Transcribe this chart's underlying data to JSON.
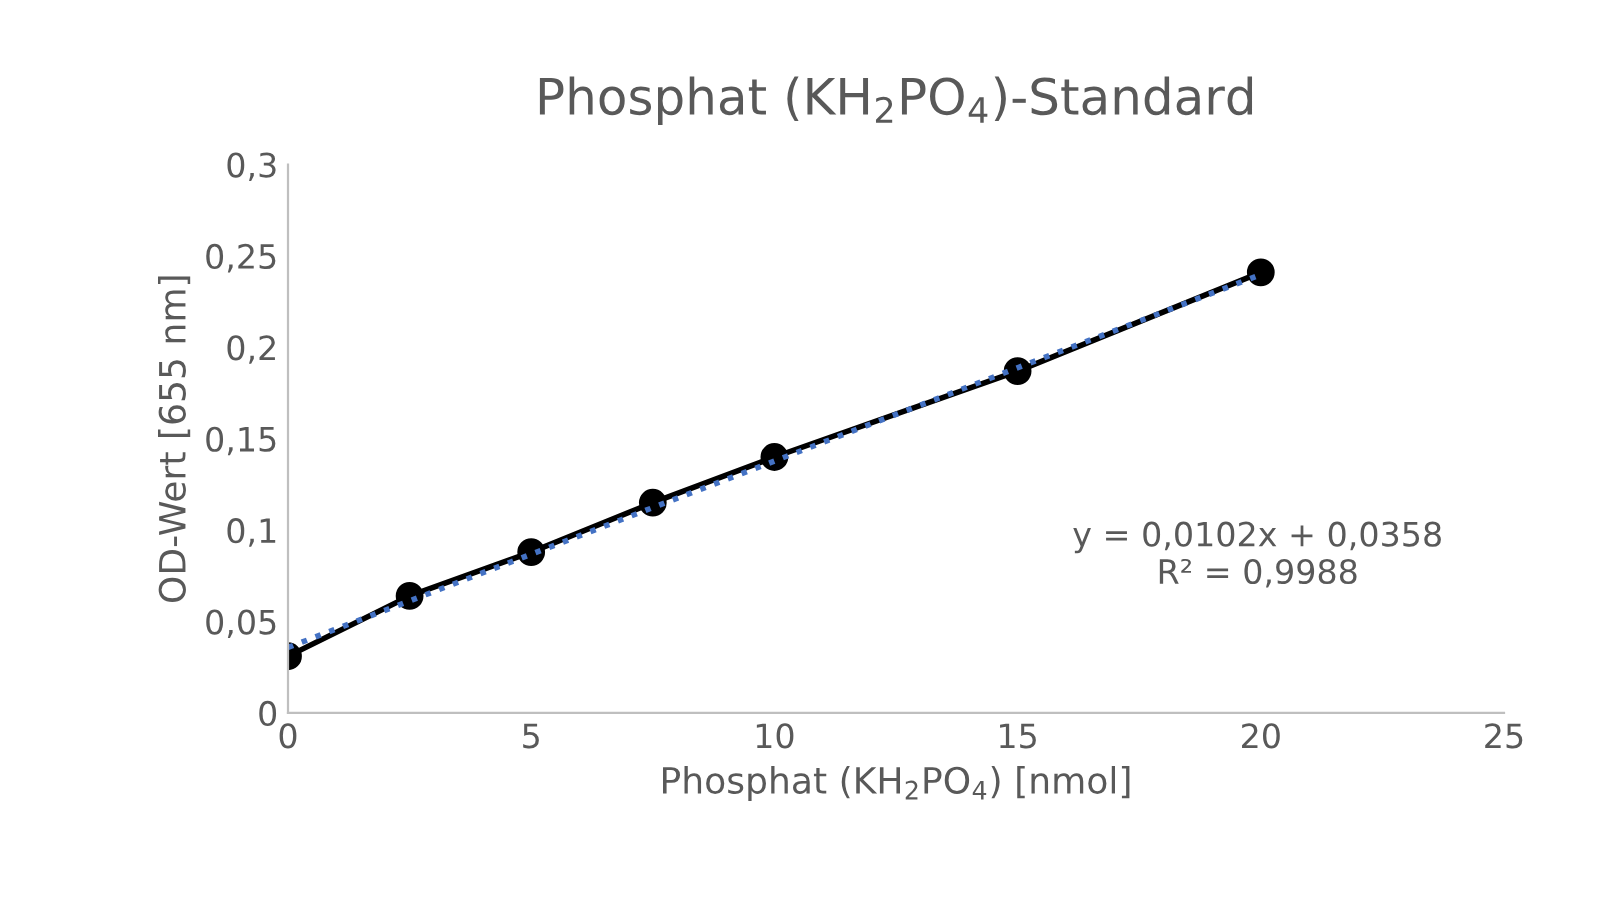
{
  "chart_data": {
    "type": "line",
    "title": "Phosphat (KH$_{2}$PO$_{4}$)-Standard",
    "xlabel": "Phosphat (KH$_{2}$PO$_{4}$) [nmol]",
    "ylabel": "OD-Wert [655 nm]",
    "x": [
      0,
      2.5,
      5,
      7.5,
      10,
      15,
      20
    ],
    "series": [
      {
        "color": "#000000",
        "values": [
          0.031,
          0.064,
          0.088,
          0.115,
          0.14,
          0.187,
          0.241
        ],
        "marker": "circle",
        "line_style": "solid"
      },
      {
        "type": "line",
        "color": "#4472c4",
        "x": [
          0,
          20
        ],
        "values": [
          0.0358,
          0.2398
        ],
        "marker": "none",
        "line_style": "dotted"
      }
    ],
    "xlim": [
      0,
      25
    ],
    "xticks": [
      0,
      5,
      10,
      15,
      20,
      25
    ],
    "ylim": [
      0,
      0.3
    ],
    "yticks": [
      0,
      {
        "value": 0.05,
        "label": "0,05"
      },
      {
        "value": 0.1,
        "label": "0,1"
      },
      {
        "value": 0.15,
        "label": "0,15"
      },
      {
        "value": 0.2,
        "label": "0,2"
      },
      {
        "value": 0.25,
        "label": "0,25"
      },
      {
        "value": 0.3,
        "label": "0,3"
      }
    ],
    "grid": false,
    "legend": false,
    "annotations": [
      "y = 0,0102x + 0,0358\nR² = 0,9988"
    ]
  }
}
